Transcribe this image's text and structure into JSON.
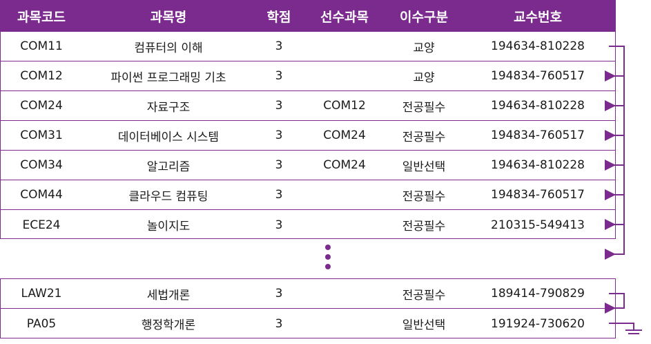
{
  "header": [
    "과목코드",
    "과목명",
    "학점",
    "선수과목",
    "이수구분",
    "교수번호"
  ],
  "rows_top": [
    [
      "COM11",
      "컴퓨터의 이해",
      "3",
      "",
      "교양",
      "194634-810228"
    ],
    [
      "COM12",
      "파이썬 프로그래밍 기초",
      "3",
      "",
      "교양",
      "194834-760517"
    ],
    [
      "COM24",
      "자료구조",
      "3",
      "COM12",
      "전공필수",
      "194634-810228"
    ],
    [
      "COM31",
      "데이터베이스 시스템",
      "3",
      "COM24",
      "전공필수",
      "194834-760517"
    ],
    [
      "COM34",
      "알고리즘",
      "3",
      "COM24",
      "일반선택",
      "194634-810228"
    ],
    [
      "COM44",
      "클라우드 컴퓨팅",
      "3",
      "",
      "전공필수",
      "194834-760517"
    ],
    [
      "ECE24",
      "놀이지도",
      "3",
      "",
      "전공필수",
      "210315-549413"
    ]
  ],
  "rows_bottom": [
    [
      "LAW21",
      "세법개론",
      "3",
      "",
      "전공필수",
      "189414-790829"
    ],
    [
      "PA05",
      "행정학개론",
      "3",
      "",
      "일반선택",
      "191924-730620"
    ]
  ],
  "colors": {
    "accent": "#7b2a8e",
    "header_text": "#ffffff"
  }
}
